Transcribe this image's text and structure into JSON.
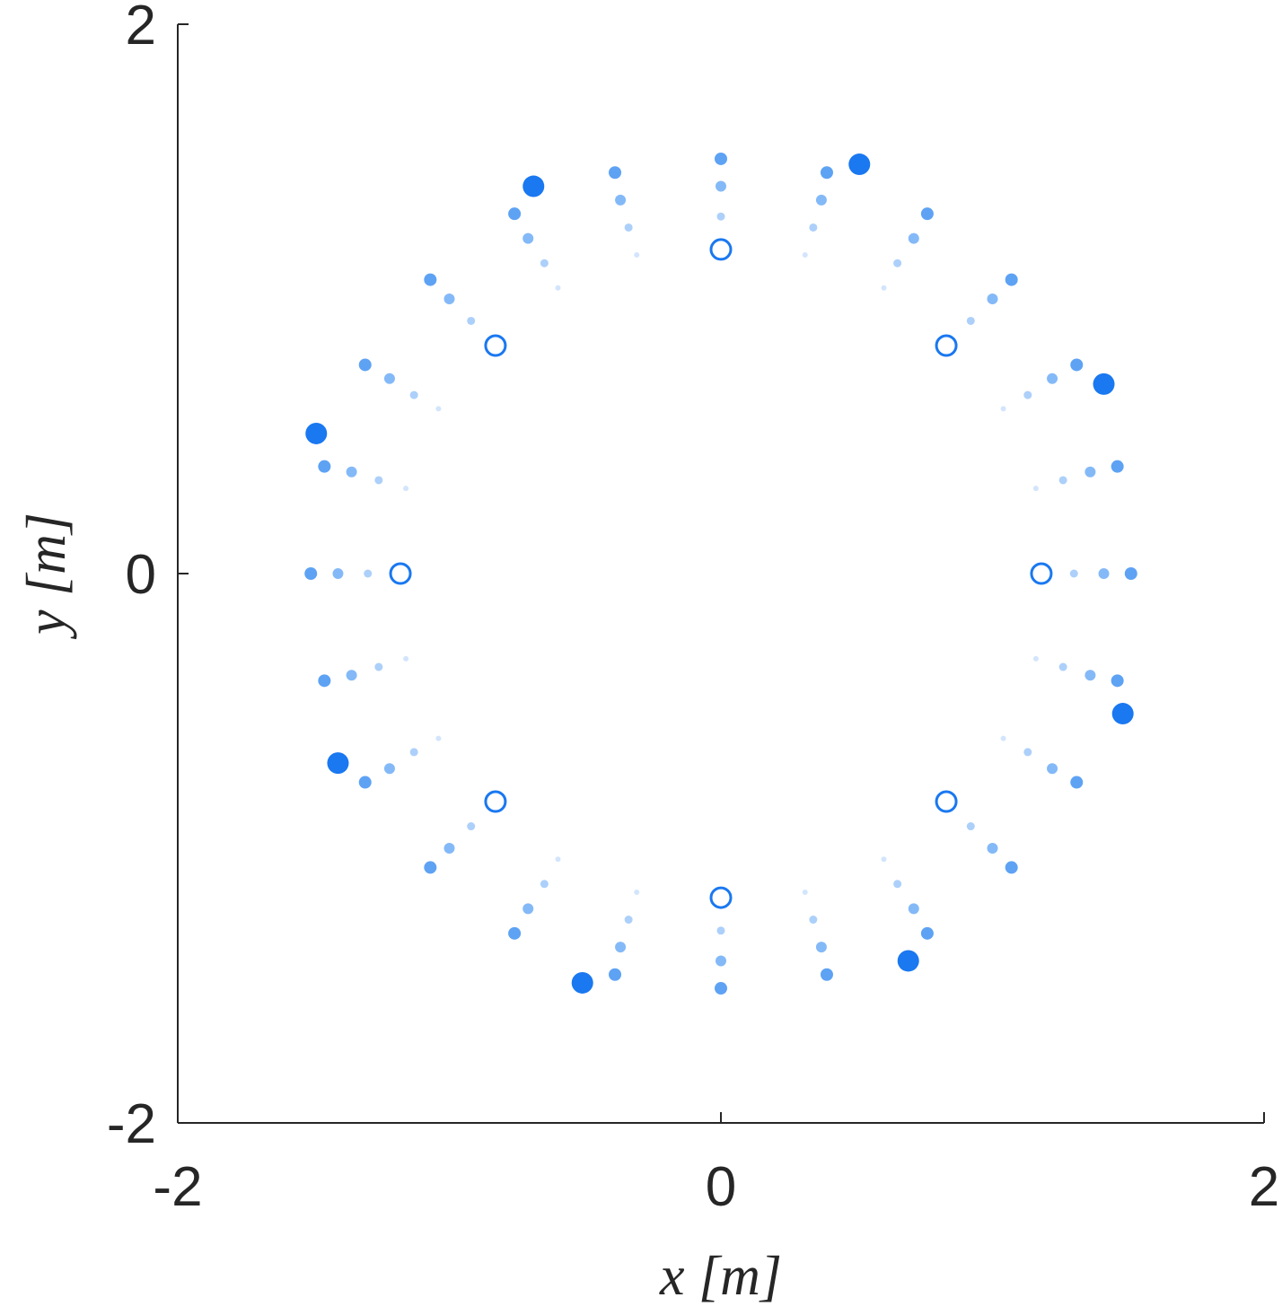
{
  "chart_data": {
    "type": "scatter",
    "xlabel": "x [m]",
    "ylabel": "y [m]",
    "xlim": [
      -2,
      2
    ],
    "ylim": [
      -2,
      2
    ],
    "xticks": [
      -2,
      0,
      2
    ],
    "yticks": [
      -2,
      0,
      2
    ],
    "series": [
      {
        "color": "#d3e5fc",
        "marker": "filled",
        "size": 3,
        "x": [
          1.2,
          1.16,
          1.04,
          0.85,
          0.6,
          0.31,
          0,
          -0.31,
          -0.6,
          -0.85,
          -1.04,
          -1.16,
          -1.2,
          -1.16,
          -1.04,
          -0.85,
          -0.6,
          -0.31,
          0,
          0.31,
          0.6,
          0.85,
          1.04,
          1.16
        ],
        "values": [
          0,
          0.31,
          0.6,
          0.85,
          1.04,
          1.16,
          1.2,
          1.16,
          1.04,
          0.85,
          0.6,
          0.31,
          0,
          -0.31,
          -0.6,
          -0.85,
          -1.04,
          -1.16,
          -1.2,
          -1.16,
          -1.04,
          -0.85,
          -0.6,
          -0.31
        ]
      },
      {
        "color": "#acd0fa",
        "marker": "filled",
        "size": 4.5,
        "x": [
          1.3,
          1.26,
          1.13,
          0.92,
          0.65,
          0.34,
          0,
          -0.34,
          -0.65,
          -0.92,
          -1.13,
          -1.26,
          -1.3,
          -1.26,
          -1.13,
          -0.92,
          -0.65,
          -0.34,
          0,
          0.34,
          0.65,
          0.92,
          1.13,
          1.26
        ],
        "values": [
          0,
          0.34,
          0.65,
          0.92,
          1.13,
          1.26,
          1.3,
          1.26,
          1.13,
          0.92,
          0.65,
          0.34,
          0,
          -0.34,
          -0.65,
          -0.92,
          -1.13,
          -1.26,
          -1.3,
          -1.26,
          -1.13,
          -0.92,
          -0.65,
          -0.34
        ]
      },
      {
        "color": "#84b9f8",
        "marker": "filled",
        "size": 6,
        "x": [
          1.41,
          1.36,
          1.22,
          1,
          0.71,
          0.37,
          0,
          -0.37,
          -0.71,
          -1,
          -1.22,
          -1.36,
          -1.41,
          -1.36,
          -1.22,
          -1,
          -0.71,
          -0.37,
          0,
          0.37,
          0.71,
          1,
          1.22,
          1.36
        ],
        "values": [
          0,
          0.37,
          0.71,
          1,
          1.22,
          1.36,
          1.41,
          1.36,
          1.22,
          1,
          0.71,
          0.37,
          0,
          -0.37,
          -0.71,
          -1,
          -1.22,
          -1.36,
          -1.41,
          -1.36,
          -1.22,
          -1,
          -0.71,
          -0.37
        ]
      },
      {
        "color": "#5ea2f4",
        "marker": "filled",
        "size": 7,
        "x": [
          1.51,
          1.46,
          1.31,
          1.07,
          0.76,
          0.39,
          0,
          -0.39,
          -0.76,
          -1.07,
          -1.31,
          -1.46,
          -1.51,
          -1.46,
          -1.31,
          -1.07,
          -0.76,
          -0.39,
          0,
          0.39,
          0.76,
          1.07,
          1.31,
          1.46
        ],
        "values": [
          0,
          0.39,
          0.76,
          1.07,
          1.31,
          1.46,
          1.51,
          1.46,
          1.31,
          1.07,
          0.76,
          0.39,
          0,
          -0.39,
          -0.76,
          -1.07,
          -1.31,
          -1.46,
          -1.51,
          -1.46,
          -1.31,
          -1.07,
          -0.76,
          -0.39
        ]
      },
      {
        "color": "#1a78f0",
        "marker": "open",
        "size": 11,
        "x": [
          1.18,
          0.83,
          0,
          -0.83,
          -1.18,
          -0.83,
          0,
          0.83
        ],
        "values": [
          0,
          0.83,
          1.18,
          0.83,
          0,
          -0.83,
          -1.18,
          -0.83
        ]
      },
      {
        "color": "#1a78f0",
        "marker": "filled",
        "size": 12,
        "x": [
          0.51,
          1.41,
          1.48,
          0.69,
          -0.51,
          -1.41,
          -1.49,
          -0.69
        ],
        "values": [
          1.49,
          0.69,
          -0.51,
          -1.41,
          -1.49,
          -0.69,
          0.51,
          1.41
        ]
      }
    ]
  }
}
